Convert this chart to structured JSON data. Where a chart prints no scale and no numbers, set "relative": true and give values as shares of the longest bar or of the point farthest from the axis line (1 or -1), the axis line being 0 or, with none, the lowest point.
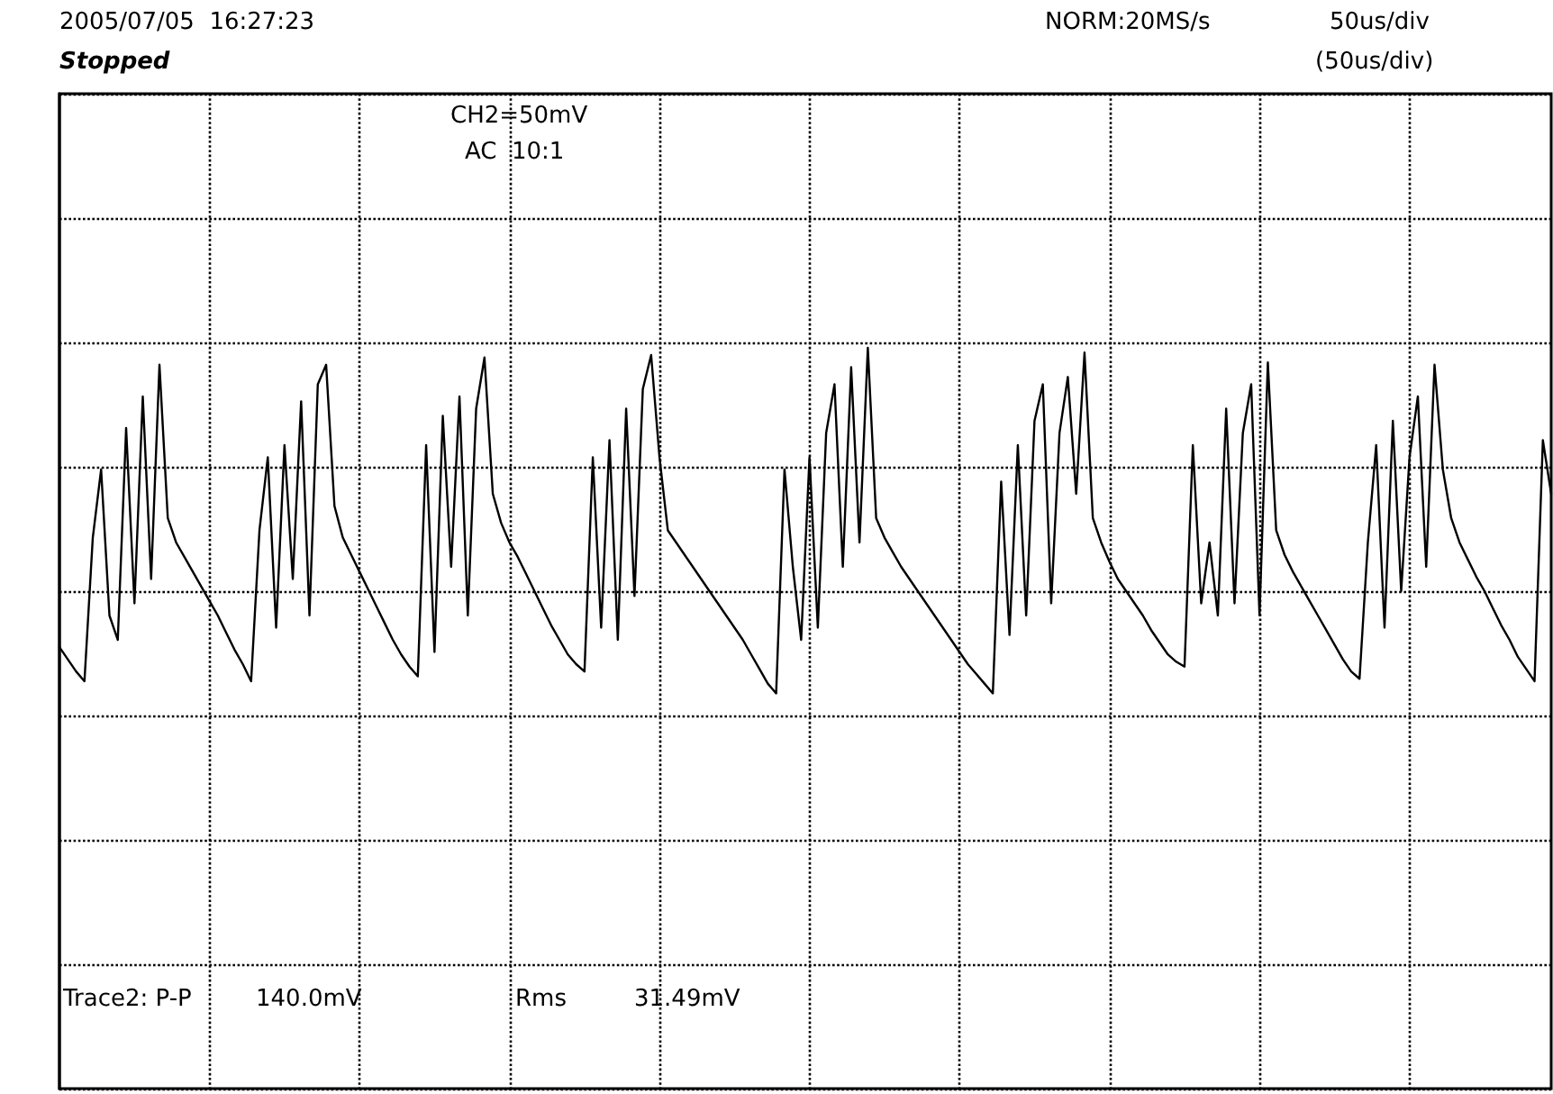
{
  "chart_data": {
    "type": "line",
    "relative": true,
    "grid": true,
    "marker": "none",
    "line_style": "solid",
    "annotations": [
      "2005/07/05  16:27:23",
      "Stopped",
      "NORM:20MS/s",
      "50us/div",
      "(50us/div)",
      "CH2=50mV",
      "AC  10:1",
      "Trace2: P-P",
      "140.0mV",
      "Rms",
      "31.49mV"
    ],
    "categories": [
      null,
      null,
      null,
      null,
      null,
      null,
      null,
      null,
      null,
      null,
      null,
      null,
      null,
      null,
      null,
      null,
      null,
      null,
      null,
      null,
      null,
      null,
      null,
      null,
      null,
      null,
      null,
      null,
      null,
      null,
      null,
      null,
      null,
      null,
      null,
      null,
      null,
      null,
      null,
      null,
      null,
      null,
      null,
      null,
      null,
      null,
      null,
      null,
      null,
      null,
      null,
      null,
      null,
      null,
      null,
      null,
      null,
      null,
      null,
      null,
      null,
      null,
      null,
      null,
      null,
      null,
      null,
      null,
      null,
      null,
      null,
      null,
      null,
      null,
      null,
      null,
      null,
      null,
      null,
      null,
      null,
      null,
      null,
      null,
      null,
      null,
      null,
      null,
      null,
      null,
      null,
      null,
      null,
      null,
      null,
      null,
      null,
      null,
      null,
      null,
      null,
      null,
      null,
      null,
      null,
      null,
      null,
      null,
      null,
      null,
      null,
      null,
      null,
      null,
      null,
      null,
      null,
      null,
      null,
      null,
      null,
      null,
      null,
      null,
      null,
      null,
      null,
      null,
      null,
      null,
      null,
      null,
      null,
      null,
      null,
      null,
      null,
      null,
      null,
      null,
      null,
      null,
      null,
      null,
      null,
      null,
      null,
      null,
      null,
      null,
      null,
      null,
      null,
      null,
      null,
      null,
      null,
      null,
      null,
      null,
      null,
      null,
      null,
      null,
      null,
      null,
      null,
      null,
      null,
      null,
      null,
      null,
      null,
      null,
      null,
      null,
      null,
      null,
      null,
      null
    ],
    "series": [
      {
        "color": "#000000",
        "values": [
          -0.23,
          -0.28,
          -0.33,
          -0.37,
          0.22,
          0.5,
          -0.1,
          -0.2,
          0.67,
          -0.05,
          0.8,
          0.05,
          0.93,
          0.3,
          0.2,
          0.14,
          0.08,
          0.02,
          -0.04,
          -0.1,
          -0.17,
          -0.24,
          -0.3,
          -0.37,
          0.25,
          0.55,
          -0.15,
          0.6,
          0.05,
          0.78,
          -0.1,
          0.85,
          0.93,
          0.35,
          0.22,
          0.15,
          0.08,
          0.01,
          -0.06,
          -0.13,
          -0.2,
          -0.26,
          -0.31,
          -0.35,
          0.6,
          -0.25,
          0.72,
          0.1,
          0.8,
          -0.1,
          0.75,
          0.96,
          0.4,
          0.28,
          0.2,
          0.14,
          0.07,
          0.0,
          -0.07,
          -0.14,
          -0.2,
          -0.26,
          -0.3,
          -0.33,
          0.55,
          -0.15,
          0.62,
          -0.2,
          0.75,
          -0.02,
          0.83,
          0.97,
          0.55,
          0.25,
          0.2,
          0.15,
          0.1,
          0.05,
          0.0,
          -0.05,
          -0.1,
          -0.15,
          -0.2,
          -0.26,
          -0.32,
          -0.38,
          -0.42,
          0.5,
          0.1,
          -0.2,
          0.55,
          -0.15,
          0.65,
          0.85,
          0.1,
          0.92,
          0.2,
          1.0,
          0.3,
          0.22,
          0.16,
          0.1,
          0.05,
          0.0,
          -0.05,
          -0.1,
          -0.15,
          -0.2,
          -0.25,
          -0.3,
          -0.34,
          -0.38,
          -0.42,
          0.45,
          -0.18,
          0.6,
          -0.1,
          0.7,
          0.85,
          -0.05,
          0.65,
          0.88,
          0.4,
          0.98,
          0.3,
          0.2,
          0.12,
          0.05,
          0.0,
          -0.05,
          -0.1,
          -0.16,
          -0.21,
          -0.26,
          -0.29,
          -0.31,
          0.6,
          -0.05,
          0.2,
          -0.1,
          0.75,
          -0.05,
          0.65,
          0.85,
          -0.1,
          0.94,
          0.25,
          0.15,
          0.08,
          0.02,
          -0.04,
          -0.1,
          -0.16,
          -0.22,
          -0.28,
          -0.33,
          -0.36,
          0.2,
          0.6,
          -0.15,
          0.7,
          0.0,
          0.55,
          0.8,
          0.1,
          0.93,
          0.5,
          0.3,
          0.2,
          0.13,
          0.06,
          0.0,
          -0.07,
          -0.14,
          -0.2,
          -0.27,
          -0.32,
          -0.37,
          0.62,
          0.4
        ]
      }
    ]
  }
}
